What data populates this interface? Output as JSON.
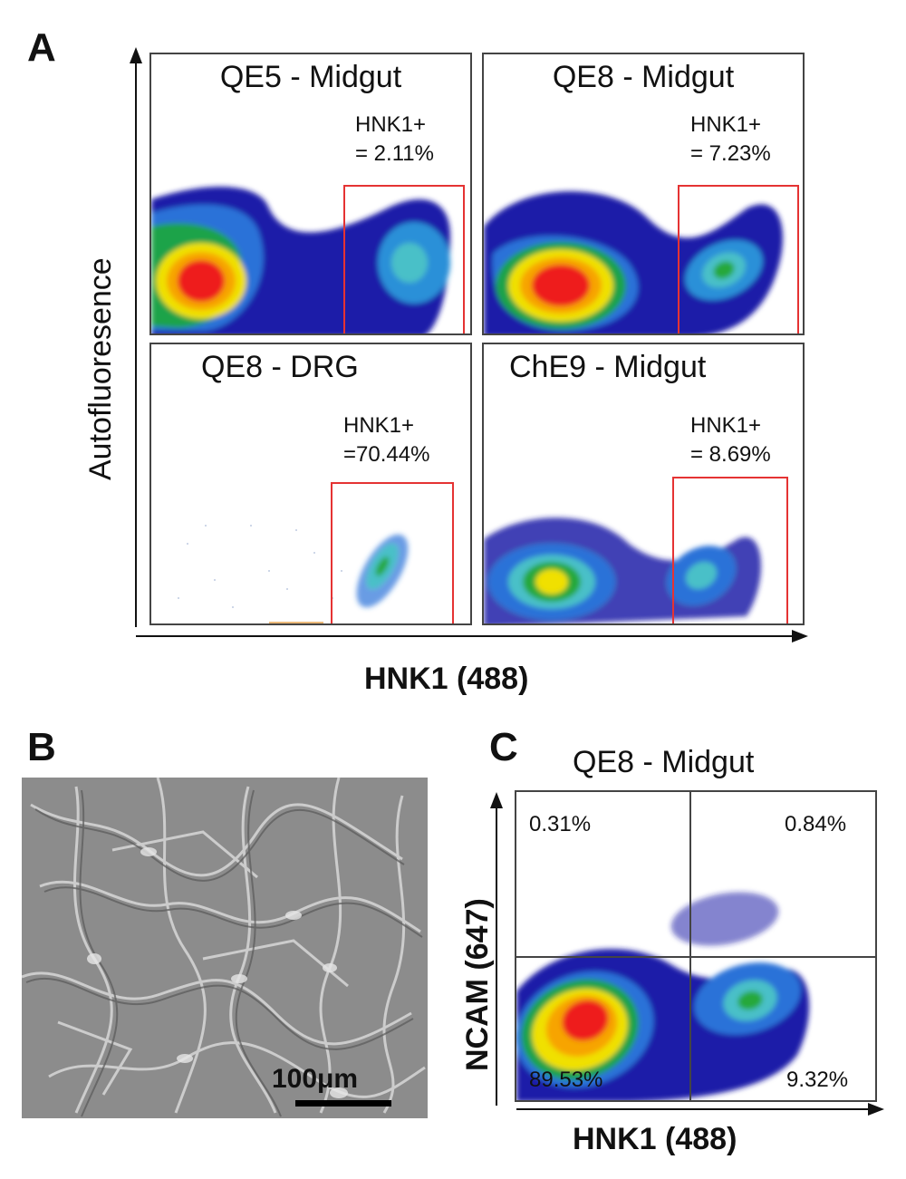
{
  "panel_a": {
    "letter": "A",
    "y_axis_label": "Autofluoresence",
    "x_axis_label": "HNK1 (488)",
    "plots": [
      {
        "title": "QE5 - Midgut",
        "gate_label": "HNK1+",
        "gate_value": "= 2.11%"
      },
      {
        "title": "QE8 - Midgut",
        "gate_label": "HNK1+",
        "gate_value": "= 7.23%"
      },
      {
        "title": "QE8 - DRG",
        "gate_label": "HNK1+",
        "gate_value": "=70.44%"
      },
      {
        "title": "ChE9 - Midgut",
        "gate_label": "HNK1+",
        "gate_value": "= 8.69%"
      }
    ]
  },
  "panel_b": {
    "letter": "B",
    "scale_bar_label": "100μm"
  },
  "panel_c": {
    "letter": "C",
    "title": "QE8 - Midgut",
    "y_axis_label": "NCAM (647)",
    "x_axis_label": "HNK1 (488)",
    "quadrants": {
      "top_left": "0.31%",
      "top_right": "0.84%",
      "bottom_left": "89.53%",
      "bottom_right": "9.32%"
    }
  },
  "colors": {
    "gate": "#e53333",
    "density_low": "#1a1aa0",
    "density_mid": "#19b3e0",
    "density_green": "#27a83a",
    "density_yellow": "#f2e600",
    "density_high": "#ee1c1c"
  }
}
